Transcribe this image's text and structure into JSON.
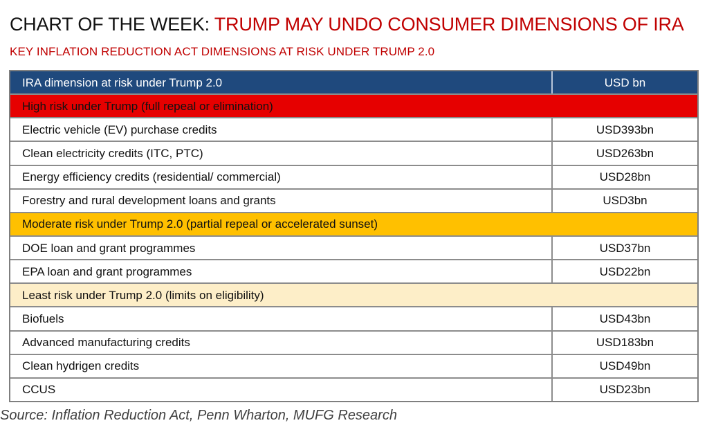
{
  "title": {
    "prefix": "CHART OF THE WEEK: ",
    "headline": "TRUMP MAY UNDO CONSUMER DIMENSIONS OF IRA"
  },
  "subtitle": "KEY INFLATION REDUCTION ACT DIMENSIONS AT RISK UNDER TRUMP 2.0",
  "colors": {
    "header_bg": "#1f497d",
    "high_risk": "#e60000",
    "moderate_risk": "#ffc000",
    "least_risk": "#fdeec8",
    "title_red": "#c00000"
  },
  "table": {
    "header": {
      "dimension": "IRA dimension at risk under Trump 2.0",
      "value": "USD bn"
    },
    "sections": [
      {
        "label": "High risk under Trump (full repeal or elimination)",
        "color": "#e60000",
        "rows": [
          {
            "dimension": "Electric vehicle (EV) purchase credits",
            "value": "USD393bn"
          },
          {
            "dimension": "Clean electricity credits (ITC, PTC)",
            "value": "USD263bn"
          },
          {
            "dimension": "Energy efficiency credits (residential/ commercial)",
            "value": "USD28bn"
          },
          {
            "dimension": "Forestry and rural development loans and grants",
            "value": "USD3bn"
          }
        ]
      },
      {
        "label": "Moderate risk under Trump 2.0 (partial repeal or accelerated sunset)",
        "color": "#ffc000",
        "rows": [
          {
            "dimension": "DOE loan and grant programmes",
            "value": "USD37bn"
          },
          {
            "dimension": "EPA loan and grant programmes",
            "value": "USD22bn"
          }
        ]
      },
      {
        "label": "Least risk under Trump 2.0 (limits on eligibility)",
        "color": "#fdeec8",
        "rows": [
          {
            "dimension": "Biofuels",
            "value": "USD43bn"
          },
          {
            "dimension": "Advanced manufacturing credits",
            "value": "USD183bn"
          },
          {
            "dimension": "Clean hydrigen credits",
            "value": "USD49bn"
          },
          {
            "dimension": "CCUS",
            "value": "USD23bn"
          }
        ]
      }
    ]
  },
  "source": "Source: Inflation Reduction Act, Penn Wharton, MUFG Research"
}
